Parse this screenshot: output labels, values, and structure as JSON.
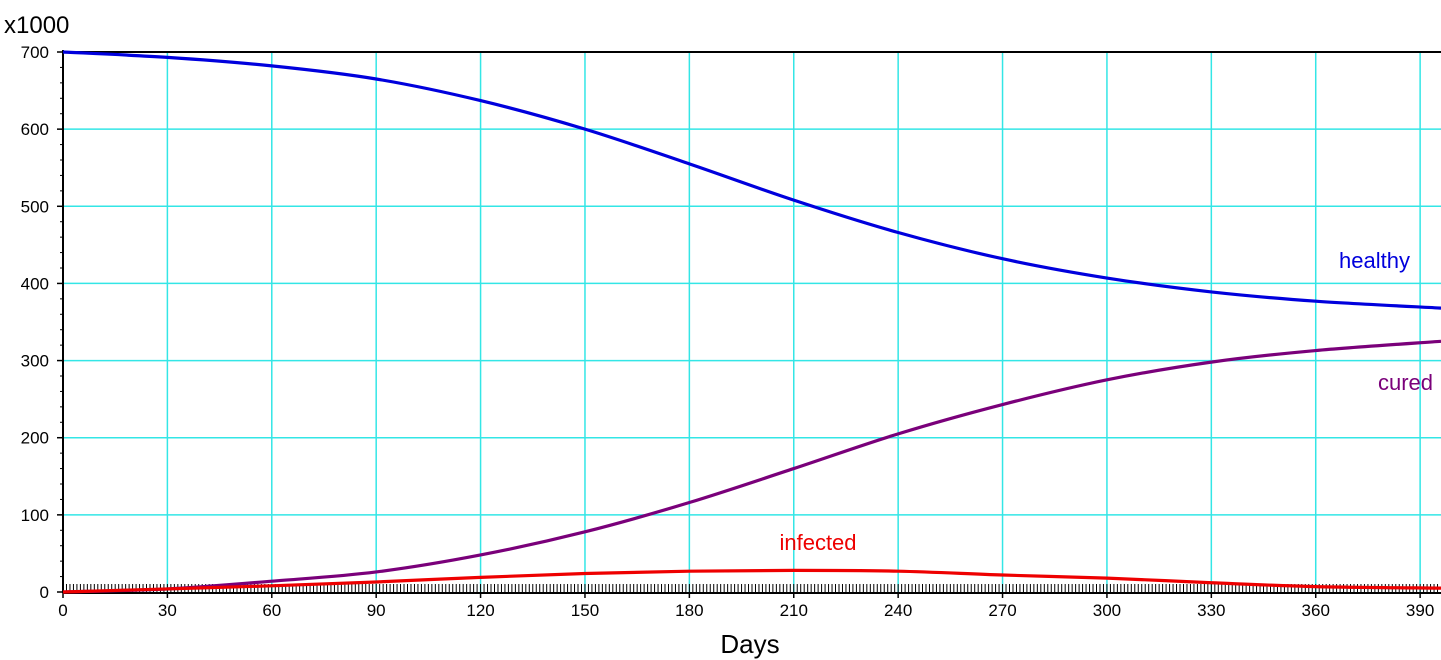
{
  "chart_data": {
    "type": "line",
    "y_unit_label": "x1000",
    "xlabel": "Days",
    "xlim": [
      0,
      396
    ],
    "ylim": [
      0,
      700
    ],
    "x_ticks": [
      0,
      30,
      60,
      90,
      120,
      150,
      180,
      210,
      240,
      270,
      300,
      330,
      360,
      390
    ],
    "y_ticks": [
      0,
      100,
      200,
      300,
      400,
      500,
      600,
      700
    ],
    "x_tick_labels": [
      "0",
      "30",
      "60",
      "90",
      "120",
      "150",
      "180",
      "210",
      "240",
      "270",
      "300",
      "330",
      "360",
      "390"
    ],
    "y_tick_labels": [
      "0",
      "100",
      "200",
      "300",
      "400",
      "500",
      "600",
      "700"
    ],
    "grid": true,
    "colors": {
      "grid": "#33e6e6",
      "healthy": "#0000dd",
      "cured": "#7a007a",
      "infected": "#ee0000"
    },
    "x": [
      0,
      30,
      60,
      90,
      120,
      150,
      180,
      210,
      240,
      270,
      300,
      330,
      360,
      396
    ],
    "series": [
      {
        "name": "healthy",
        "values": [
          700,
          693,
          682,
          665,
          637,
          600,
          555,
          508,
          466,
          432,
          407,
          389,
          377,
          368
        ]
      },
      {
        "name": "cured",
        "values": [
          0,
          4,
          14,
          26,
          48,
          78,
          116,
          160,
          205,
          243,
          275,
          298,
          313,
          325
        ]
      },
      {
        "name": "infected",
        "values": [
          0,
          4,
          8,
          13,
          19,
          24,
          27,
          28,
          27,
          22,
          18,
          12,
          7,
          5
        ]
      }
    ],
    "labels": {
      "healthy": "healthy",
      "cured": "cured",
      "infected": "infected"
    }
  }
}
